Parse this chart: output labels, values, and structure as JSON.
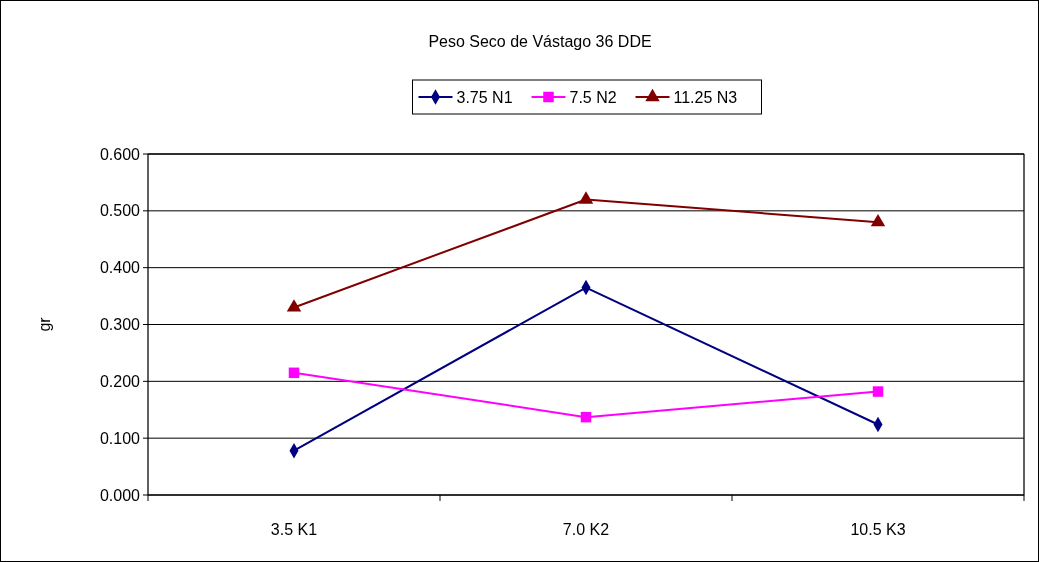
{
  "chart_data": {
    "type": "line",
    "title": "Peso Seco de Vástago 36 DDE",
    "ylabel": "gr",
    "categories": [
      "3.5 K1",
      "7.0 K2",
      "10.5 K3"
    ],
    "series": [
      {
        "name": "3.75 N1",
        "color": "#000080",
        "marker": "diamond",
        "values": [
          0.078,
          0.365,
          0.124
        ]
      },
      {
        "name": "7.5 N2",
        "color": "#ff00ff",
        "marker": "square",
        "values": [
          0.215,
          0.137,
          0.182
        ]
      },
      {
        "name": "11.25 N3",
        "color": "#800000",
        "marker": "triangle",
        "values": [
          0.33,
          0.52,
          0.48
        ]
      }
    ],
    "ylim": [
      0,
      0.6
    ],
    "yticks": [
      {
        "value": 0,
        "label": "0.000"
      },
      {
        "value": 0.1,
        "label": "0.100"
      },
      {
        "value": 0.2,
        "label": "0.200"
      },
      {
        "value": 0.3,
        "label": "0.300"
      },
      {
        "value": 0.4,
        "label": "0.400"
      },
      {
        "value": 0.5,
        "label": "0.500"
      },
      {
        "value": 0.6,
        "label": "0.600"
      }
    ],
    "grid": "y",
    "legend": "top"
  }
}
